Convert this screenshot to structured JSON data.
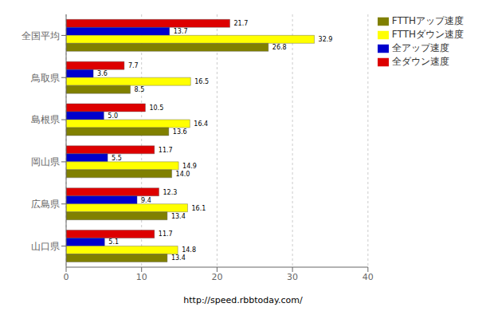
{
  "chart_data": {
    "type": "bar",
    "orientation": "horizontal",
    "categories": [
      "全国平均",
      "鳥取県",
      "島根県",
      "岡山県",
      "広島県",
      "山口県"
    ],
    "series": [
      {
        "name": "全ダウン速度",
        "color": "#DD0000",
        "values": [
          21.7,
          7.7,
          10.5,
          11.7,
          12.3,
          11.7
        ],
        "value_labels": [
          "21.7",
          "7.7",
          "10.5",
          "11.7",
          "12.3",
          "11.7"
        ]
      },
      {
        "name": "全アップ速度",
        "color": "#0000CC",
        "values": [
          13.7,
          3.6,
          5.0,
          5.5,
          9.4,
          5.1
        ],
        "value_labels": [
          "13.7",
          "3.6",
          "5.0",
          "5.5",
          "9.4",
          "5.1"
        ]
      },
      {
        "name": "FTTHダウン速度",
        "color": "#FFFF00",
        "values": [
          32.9,
          16.5,
          16.4,
          14.9,
          16.1,
          14.8
        ],
        "value_labels": [
          "32.9",
          "16.5",
          "16.4",
          "14.9",
          "16.1",
          "14.8"
        ]
      },
      {
        "name": "FTTHアップ速度",
        "color": "#808000",
        "values": [
          26.8,
          8.5,
          13.6,
          14.0,
          13.4,
          13.4
        ],
        "value_labels": [
          "26.8",
          "8.5",
          "13.6",
          "14.0",
          "13.4",
          "13.4"
        ]
      }
    ],
    "xlim": [
      0,
      40
    ],
    "xticks": [
      0,
      10,
      20,
      30,
      40
    ],
    "data_labels": true,
    "grid": true,
    "legend": "upper right",
    "annotations": [
      "http://speed.rbbtoday.com/"
    ]
  }
}
